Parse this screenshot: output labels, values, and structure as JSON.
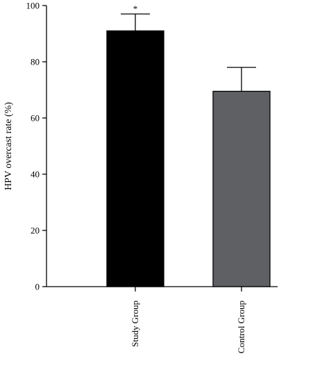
{
  "chart_data": {
    "type": "bar",
    "categories": [
      "Study Group",
      "Control Group"
    ],
    "values": [
      91,
      69.5
    ],
    "error_upper": [
      97,
      78
    ],
    "colors": [
      "#000000",
      "#5e6064"
    ],
    "ylabel": "HPV overcast rate (%)",
    "xlabel": "",
    "ylim": [
      0,
      100
    ],
    "yticks": [
      "0",
      "20",
      "40",
      "60",
      "80",
      "100"
    ],
    "annotations": [
      {
        "category_index": 0,
        "text": "*"
      }
    ],
    "grid": false,
    "legend": "none"
  }
}
